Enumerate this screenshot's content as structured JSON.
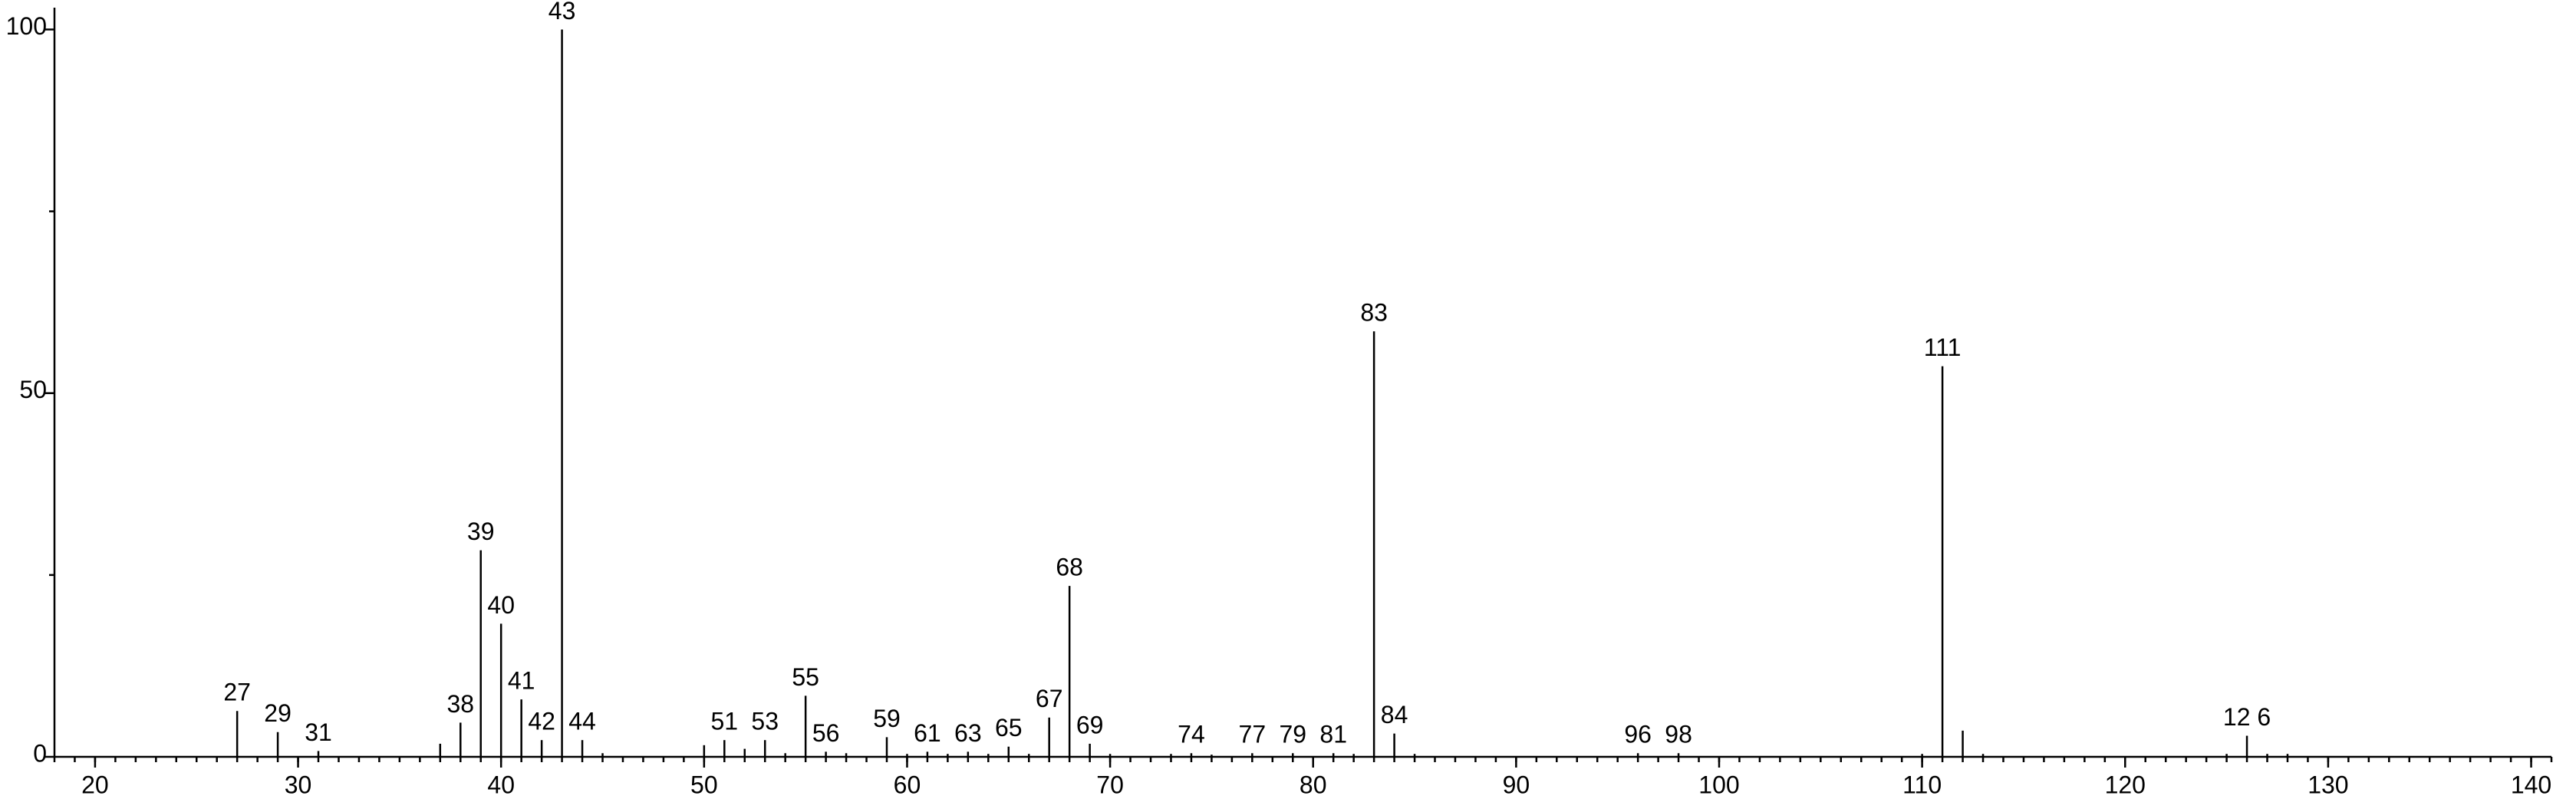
{
  "chart_data": {
    "type": "stem",
    "x": [
      27,
      29,
      31,
      37,
      38,
      39,
      40,
      41,
      42,
      43,
      44,
      45,
      50,
      51,
      52,
      53,
      54,
      55,
      56,
      57,
      59,
      60,
      61,
      62,
      63,
      64,
      65,
      66,
      67,
      68,
      69,
      70,
      73,
      74,
      75,
      77,
      79,
      81,
      82,
      83,
      84,
      85,
      96,
      98,
      110,
      111,
      112,
      113,
      125,
      126,
      127,
      128
    ],
    "values": [
      6.3,
      3.4,
      0.8,
      1.8,
      4.7,
      28.4,
      18.3,
      7.9,
      2.3,
      100,
      2.3,
      0.5,
      1.6,
      2.3,
      1.1,
      2.3,
      0.5,
      8.4,
      0.7,
      0.5,
      2.7,
      0.4,
      0.7,
      0.4,
      0.7,
      0.4,
      1.4,
      0.4,
      5.4,
      23.5,
      1.8,
      0.4,
      0.4,
      0.5,
      0.3,
      0.5,
      0.5,
      0.5,
      0.4,
      58.5,
      3.2,
      0.4,
      0.5,
      0.5,
      0.4,
      53.7,
      3.6,
      0.4,
      0.4,
      2.9,
      0.4,
      0.4
    ],
    "peak_labels": [
      "27",
      "29",
      "31",
      null,
      "38",
      "39",
      "40",
      "41",
      "42",
      "43",
      "44",
      null,
      null,
      "51",
      null,
      "53",
      null,
      "55",
      "56",
      null,
      "59",
      null,
      "61",
      null,
      "63",
      null,
      "65",
      null,
      "67",
      "68",
      "69",
      null,
      null,
      "74",
      null,
      "77",
      "79",
      "81",
      null,
      "83",
      "84",
      null,
      "96",
      "98",
      null,
      "111",
      null,
      null,
      null,
      "12 6",
      null,
      null
    ],
    "color": "#000000",
    "xlim": [
      18,
      141
    ],
    "xticks": [
      20,
      30,
      40,
      50,
      60,
      70,
      80,
      90,
      100,
      110,
      120,
      130,
      140
    ],
    "xminorticks": [
      18,
      19,
      20,
      21,
      22,
      23,
      24,
      25,
      26,
      27,
      28,
      29,
      30,
      31,
      32,
      33,
      34,
      35,
      36,
      37,
      38,
      39,
      40,
      41,
      42,
      43,
      44,
      45,
      46,
      47,
      48,
      49,
      50,
      51,
      52,
      53,
      54,
      55,
      56,
      57,
      58,
      59,
      60,
      61,
      62,
      63,
      64,
      65,
      66,
      67,
      68,
      69,
      70,
      71,
      72,
      73,
      74,
      75,
      76,
      77,
      78,
      79,
      80,
      81,
      82,
      83,
      84,
      85,
      86,
      87,
      88,
      89,
      90,
      91,
      92,
      93,
      94,
      95,
      96,
      97,
      98,
      99,
      100,
      101,
      102,
      103,
      104,
      105,
      106,
      107,
      108,
      109,
      110,
      111,
      112,
      113,
      114,
      115,
      116,
      117,
      118,
      119,
      120,
      121,
      122,
      123,
      124,
      125,
      126,
      127,
      128,
      129,
      130,
      131,
      132,
      133,
      134,
      135,
      136,
      137,
      138,
      139,
      140,
      141
    ],
    "ylim": [
      0,
      103
    ],
    "yticks": [
      0,
      50,
      100
    ],
    "yminorticks": [
      25,
      75
    ]
  }
}
